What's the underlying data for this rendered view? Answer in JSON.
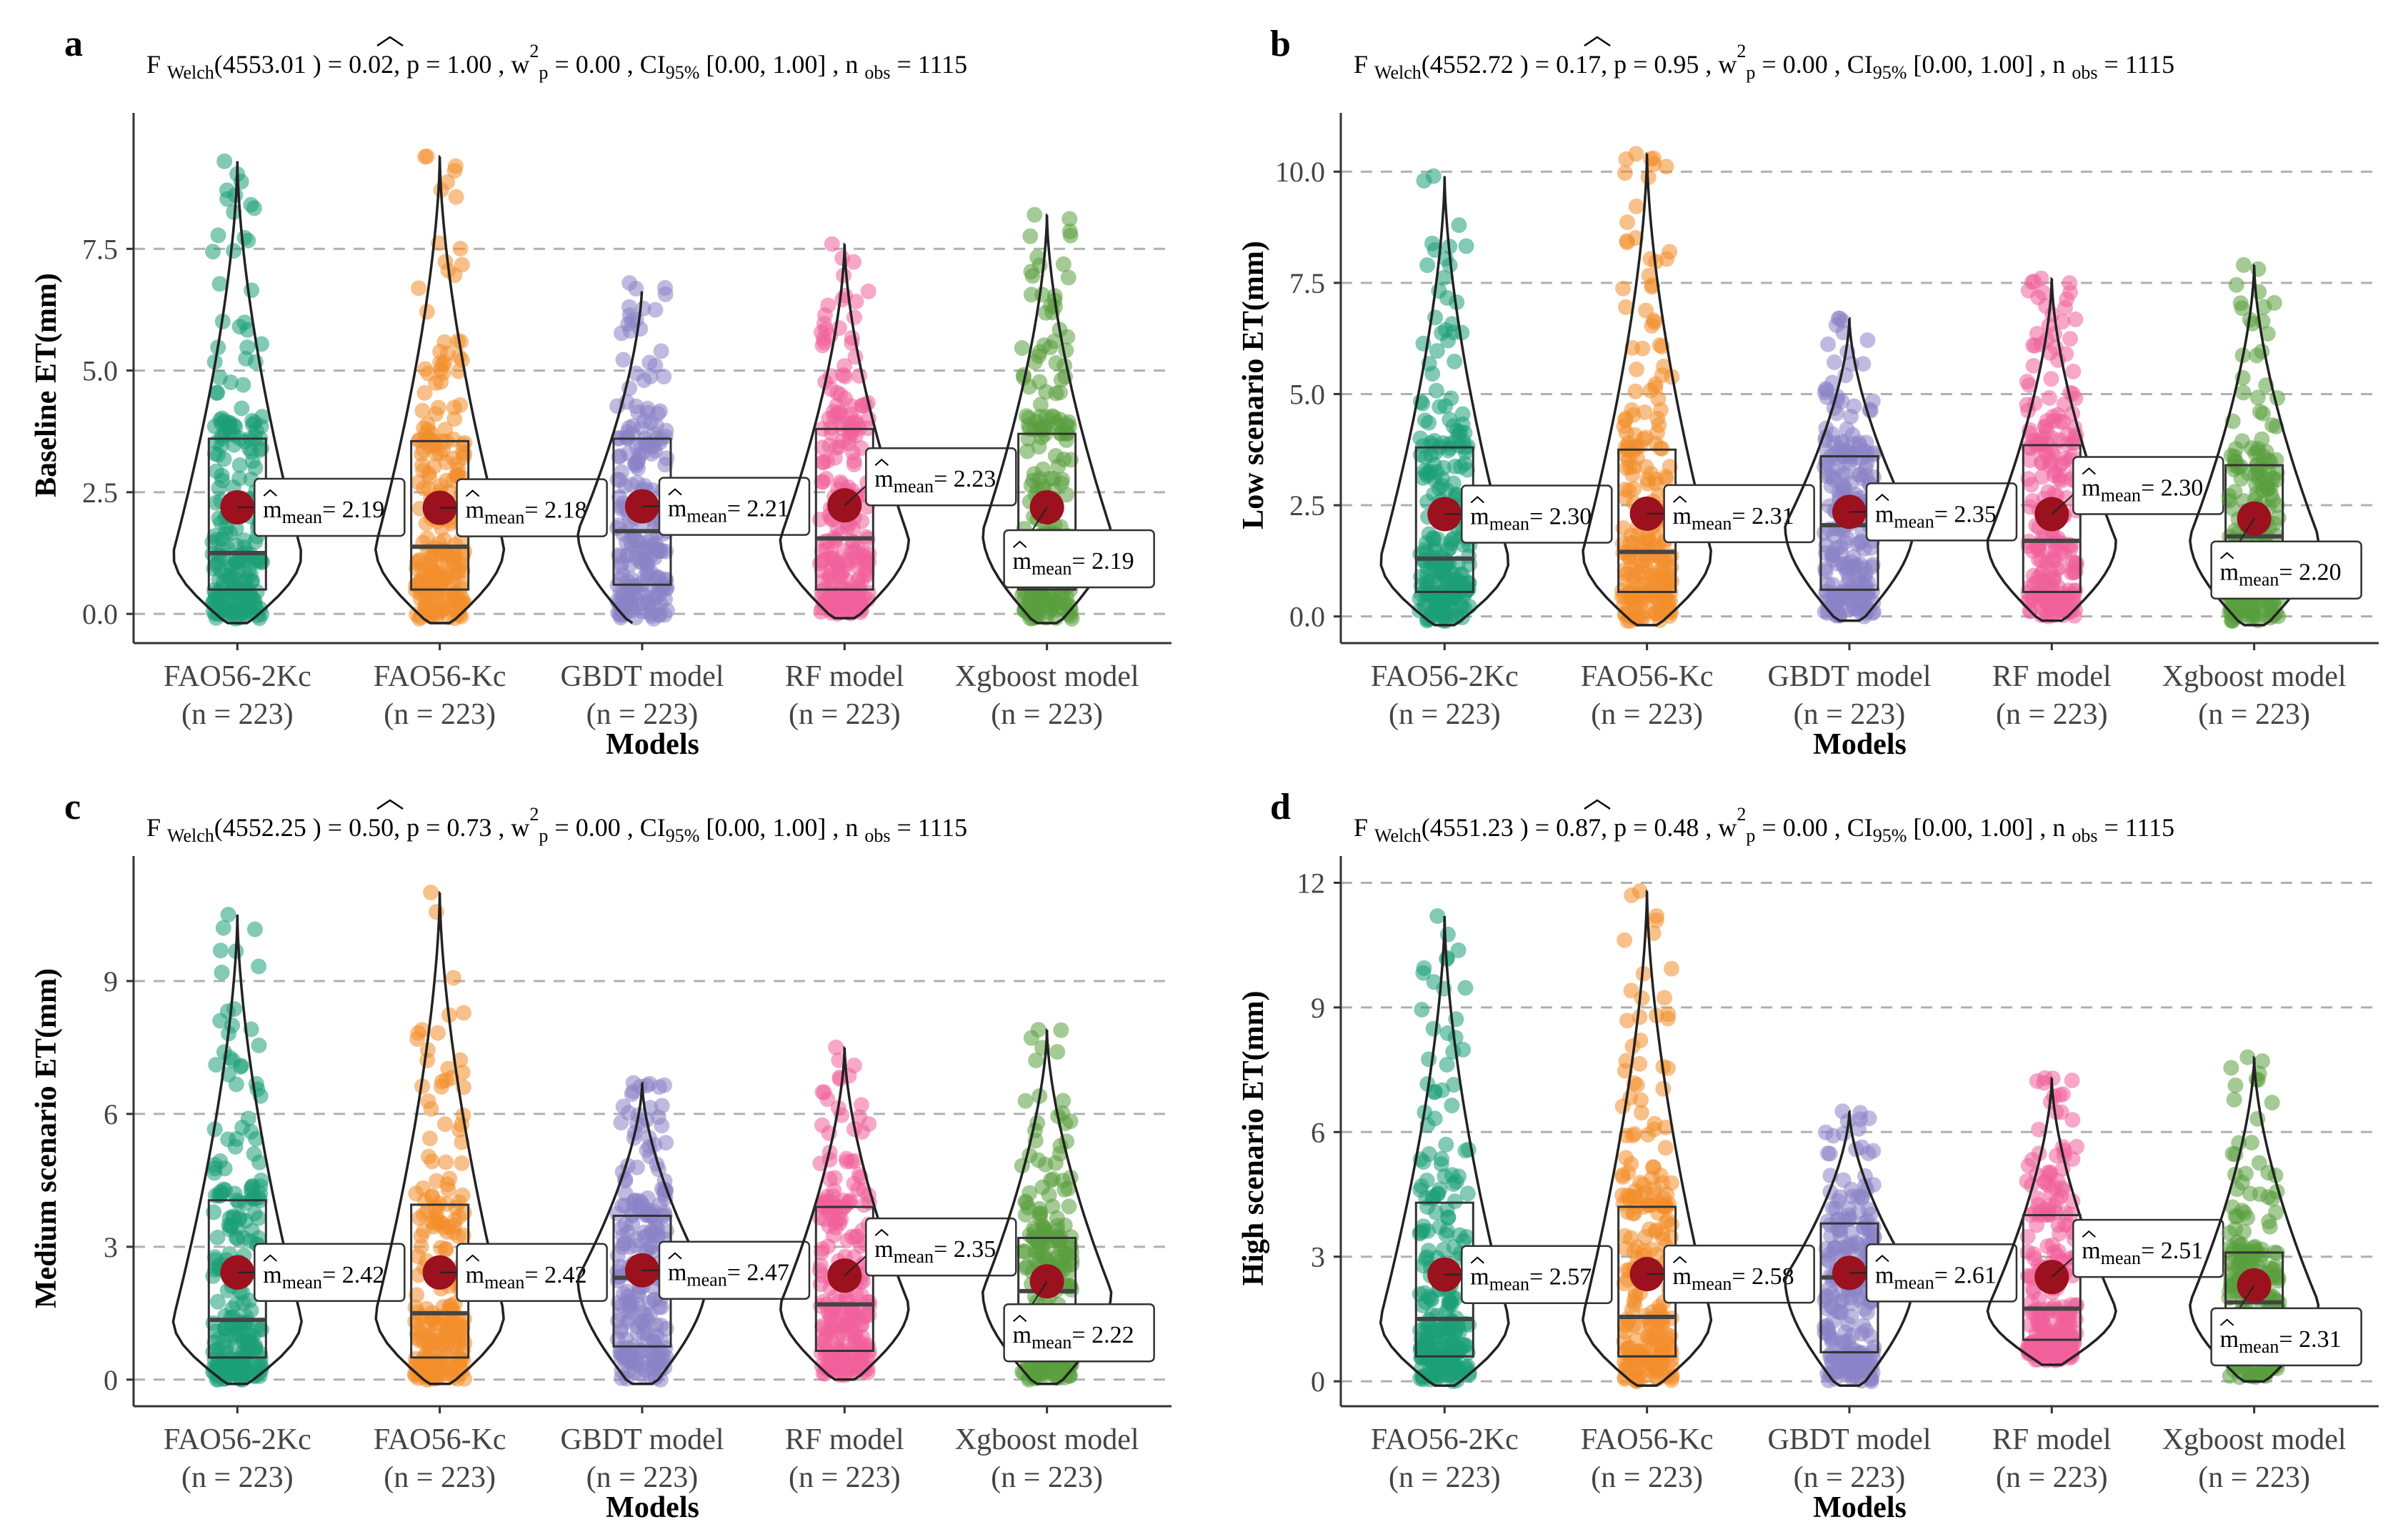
{
  "figure": {
    "type": "violin-box-jitter",
    "xlabel": "Models",
    "n_label": "(n = 223)",
    "categories": [
      "FAO56-2Kc",
      "FAO56-Kc",
      "GBDT model",
      "RF model",
      "Xgboost model"
    ],
    "colors": [
      "#1b9e77",
      "#f28e2b",
      "#8b84c6",
      "#f0609b",
      "#5a9e3e"
    ],
    "mean_color": "#9b111e",
    "mean_prefix": "m",
    "mean_sub": "mean",
    "stat": {
      "F": "F",
      "welch": "Welch",
      "p_prefix": ", p = ",
      "w": "w",
      "w_sup": "2",
      "w_sub": "p",
      "ci": "CI",
      "ci_sub": "95%",
      "n": "n",
      "n_sub": "obs",
      "nobs": "1115"
    }
  },
  "chart_data": [
    {
      "panel": "a",
      "type": "violin",
      "ylabel": "Baseline ET(mm)",
      "ylim": [
        -0.6,
        10.0
      ],
      "yticks": [
        0,
        2.5,
        5,
        7.5
      ],
      "ytick_labels": [
        "0.0",
        "2.5",
        "5.0",
        "7.5"
      ],
      "stat": {
        "df": "4553.01",
        "F": "0.02",
        "p": "1.00",
        "w2": "0.00",
        "ci": "[0.00, 1.00]"
      },
      "series": [
        {
          "name": "FAO56-2Kc",
          "q1": 0.5,
          "median": 1.25,
          "q3": 3.6,
          "min": -0.1,
          "max": 9.3,
          "mean": 2.19,
          "mean_label": "2.19"
        },
        {
          "name": "FAO56-Kc",
          "q1": 0.5,
          "median": 1.38,
          "q3": 3.55,
          "min": -0.1,
          "max": 9.4,
          "mean": 2.18,
          "mean_label": "2.18"
        },
        {
          "name": "GBDT model",
          "q1": 0.6,
          "median": 1.7,
          "q3": 3.6,
          "min": -0.1,
          "max": 6.8,
          "mean": 2.21,
          "mean_label": "2.21"
        },
        {
          "name": "RF model",
          "q1": 0.5,
          "median": 1.55,
          "q3": 3.8,
          "min": 0.0,
          "max": 7.6,
          "mean": 2.23,
          "mean_label": "2.23"
        },
        {
          "name": "Xgboost model",
          "q1": 0.5,
          "median": 1.7,
          "q3": 3.7,
          "min": -0.1,
          "max": 8.2,
          "mean": 2.19,
          "mean_label": "2.19"
        }
      ]
    },
    {
      "panel": "b",
      "type": "violin",
      "ylabel": "Low scenario ET(mm)",
      "ylim": [
        -0.6,
        11.0
      ],
      "yticks": [
        0,
        2.5,
        5,
        7.5,
        10
      ],
      "ytick_labels": [
        "0.0",
        "2.5",
        "5.0",
        "7.5",
        "10.0"
      ],
      "stat": {
        "df": "4552.72",
        "F": "0.17",
        "p": "0.95",
        "w2": "0.00",
        "ci": "[0.00, 1.00]"
      },
      "series": [
        {
          "name": "FAO56-2Kc",
          "q1": 0.55,
          "median": 1.3,
          "q3": 3.8,
          "min": -0.1,
          "max": 9.9,
          "mean": 2.3,
          "mean_label": "2.30"
        },
        {
          "name": "FAO56-Kc",
          "q1": 0.55,
          "median": 1.45,
          "q3": 3.75,
          "min": -0.1,
          "max": 10.4,
          "mean": 2.31,
          "mean_label": "2.31"
        },
        {
          "name": "GBDT model",
          "q1": 0.6,
          "median": 2.05,
          "q3": 3.6,
          "min": 0.0,
          "max": 6.7,
          "mean": 2.35,
          "mean_label": "2.35"
        },
        {
          "name": "RF model",
          "q1": 0.55,
          "median": 1.7,
          "q3": 3.85,
          "min": 0.0,
          "max": 7.6,
          "mean": 2.3,
          "mean_label": "2.30"
        },
        {
          "name": "Xgboost model",
          "q1": 0.5,
          "median": 1.8,
          "q3": 3.4,
          "min": -0.1,
          "max": 7.9,
          "mean": 2.2,
          "mean_label": "2.20"
        }
      ]
    },
    {
      "panel": "c",
      "type": "violin",
      "ylabel": "Medium scenario ET(mm)",
      "ylim": [
        -0.6,
        11.5
      ],
      "yticks": [
        0,
        3,
        6,
        9
      ],
      "ytick_labels": [
        "0",
        "3",
        "6",
        "9"
      ],
      "stat": {
        "df": "4552.25",
        "F": "0.50",
        "p": "0.73",
        "w2": "0.00",
        "ci": "[0.00, 1.00]"
      },
      "series": [
        {
          "name": "FAO56-2Kc",
          "q1": 0.5,
          "median": 1.35,
          "q3": 4.05,
          "min": 0.0,
          "max": 10.5,
          "mean": 2.42,
          "mean_label": "2.42"
        },
        {
          "name": "FAO56-Kc",
          "q1": 0.5,
          "median": 1.5,
          "q3": 3.95,
          "min": 0.0,
          "max": 11.0,
          "mean": 2.42,
          "mean_label": "2.42"
        },
        {
          "name": "GBDT model",
          "q1": 0.75,
          "median": 2.3,
          "q3": 3.7,
          "min": 0.0,
          "max": 6.7,
          "mean": 2.47,
          "mean_label": "2.47"
        },
        {
          "name": "RF model",
          "q1": 0.65,
          "median": 1.7,
          "q3": 3.9,
          "min": 0.1,
          "max": 7.5,
          "mean": 2.35,
          "mean_label": "2.35"
        },
        {
          "name": "Xgboost model",
          "q1": 0.6,
          "median": 2.0,
          "q3": 3.2,
          "min": 0.0,
          "max": 7.9,
          "mean": 2.22,
          "mean_label": "2.22"
        }
      ]
    },
    {
      "panel": "d",
      "type": "violin",
      "ylabel": "High scenario ET(mm)",
      "ylim": [
        -0.6,
        12.3
      ],
      "yticks": [
        0,
        3,
        6,
        9,
        12
      ],
      "ytick_labels": [
        "0",
        "3",
        "6",
        "9",
        "12"
      ],
      "stat": {
        "df": "4551.23",
        "F": "0.87",
        "p": "0.48",
        "w2": "0.00",
        "ci": "[0.00, 1.00]"
      },
      "series": [
        {
          "name": "FAO56-2Kc",
          "q1": 0.6,
          "median": 1.5,
          "q3": 4.3,
          "min": 0.0,
          "max": 11.2,
          "mean": 2.57,
          "mean_label": "2.57"
        },
        {
          "name": "FAO56-Kc",
          "q1": 0.6,
          "median": 1.55,
          "q3": 4.2,
          "min": 0.0,
          "max": 11.8,
          "mean": 2.58,
          "mean_label": "2.58"
        },
        {
          "name": "GBDT model",
          "q1": 0.7,
          "median": 2.5,
          "q3": 3.8,
          "min": 0.0,
          "max": 6.5,
          "mean": 2.61,
          "mean_label": "2.61"
        },
        {
          "name": "RF model",
          "q1": 1.0,
          "median": 1.75,
          "q3": 4.0,
          "min": 0.5,
          "max": 7.3,
          "mean": 2.51,
          "mean_label": "2.51"
        },
        {
          "name": "Xgboost model",
          "q1": 0.7,
          "median": 1.9,
          "q3": 3.1,
          "min": 0.1,
          "max": 7.8,
          "mean": 2.31,
          "mean_label": "2.31"
        }
      ]
    }
  ]
}
